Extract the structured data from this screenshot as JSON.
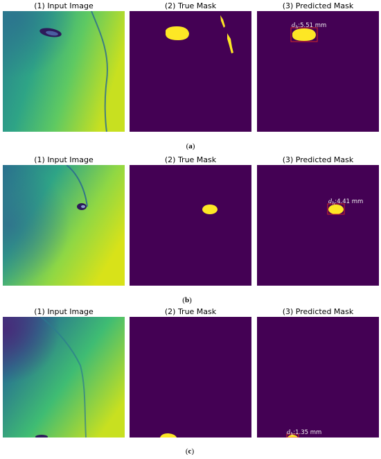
{
  "rows": [
    {
      "titles": [
        "(1) Input Image",
        "(2) True Mask",
        "(3) Predicted Mask"
      ],
      "caption_letter": "a",
      "prediction": {
        "symbol": "d",
        "subscript": "h",
        "value": "5.51 mm"
      }
    },
    {
      "titles": [
        "(1) Input Image",
        "(2) True Mask",
        "(3) Predicted Mask"
      ],
      "caption_letter": "b",
      "prediction": {
        "symbol": "d",
        "subscript": "h",
        "value": "4.41 mm"
      }
    },
    {
      "titles": [
        "(1) Input Image",
        "(2) True Mask",
        "(3) Predicted Mask"
      ],
      "caption_letter": "c",
      "prediction": {
        "symbol": "d",
        "subscript": "h",
        "value": "1.35 mm"
      }
    }
  ],
  "colors": {
    "mask_background": "#440154",
    "mask_foreground": "#fde725",
    "bbox": "#d62728",
    "input_dark": "#3b528b",
    "input_mid": "#21918c",
    "input_light": "#5ec962",
    "input_bright": "#c8e020"
  }
}
